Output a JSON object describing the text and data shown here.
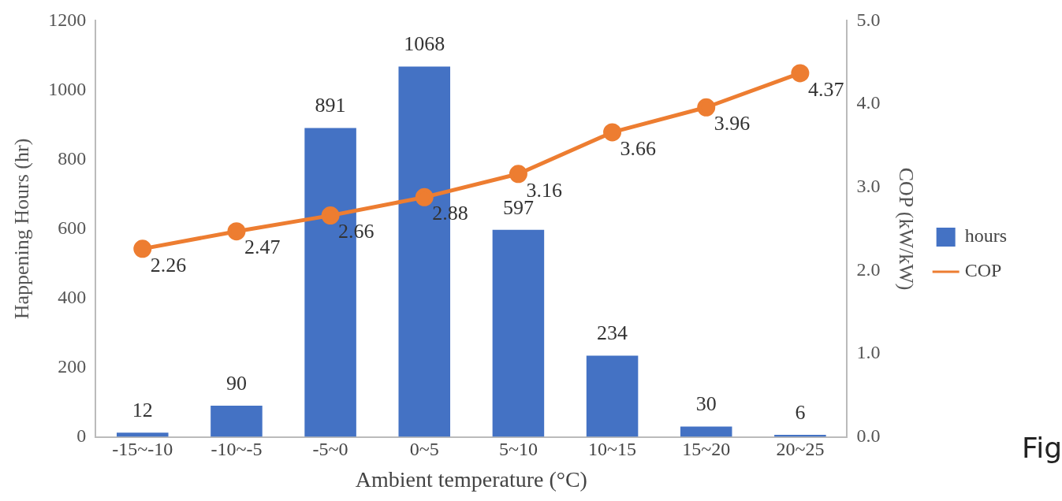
{
  "chart_data": {
    "type": "bar",
    "xlabel": "Ambient temperature (°C)",
    "ylabel": "Happening Hours (hr)",
    "y2label": "COP (kW/kW)",
    "categories": [
      "-15~-10",
      "-10~-5",
      "-5~0",
      "0~5",
      "5~10",
      "10~15",
      "15~20",
      "20~25"
    ],
    "series": [
      {
        "name": "hours",
        "color": "#4472c4",
        "values": [
          12,
          90,
          891,
          1068,
          597,
          234,
          30,
          6
        ]
      },
      {
        "name": "COP",
        "type": "line",
        "axis": "y2",
        "color": "#ed7d31",
        "marker": "circle",
        "values": [
          2.26,
          2.47,
          2.66,
          2.88,
          3.16,
          3.66,
          3.96,
          4.37
        ]
      }
    ],
    "ylim": [
      0,
      1200
    ],
    "yticks": [
      0,
      200,
      400,
      600,
      800,
      1000,
      1200
    ],
    "y2lim": [
      0,
      5
    ],
    "y2ticks": [
      {
        "value": 0,
        "label": "0.0"
      },
      {
        "value": 1,
        "label": "1.0"
      },
      {
        "value": 2,
        "label": "2.0"
      },
      {
        "value": 3,
        "label": "3.0"
      },
      {
        "value": 4,
        "label": "4.0"
      },
      {
        "value": 5,
        "label": "5.0"
      }
    ],
    "data_labels": true,
    "grid": false,
    "legend": "right",
    "annotations": [
      "Fig"
    ]
  }
}
